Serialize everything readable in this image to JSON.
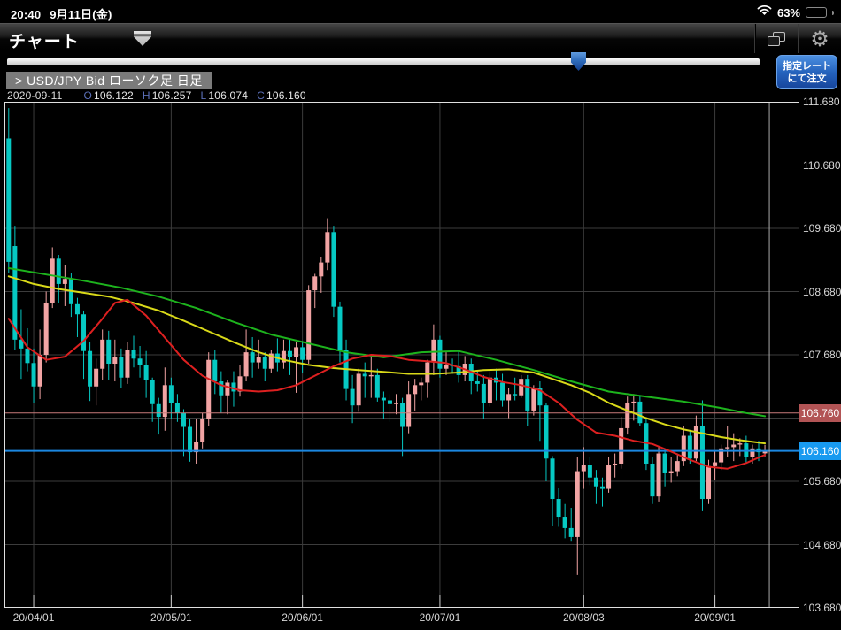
{
  "status_bar": {
    "time": "20:40",
    "date": "9月11日(金)",
    "battery_pct": "63%"
  },
  "nav_bar": {
    "title": "チャート"
  },
  "order_button": {
    "line1": "指定レート",
    "line2": "にて注文"
  },
  "symbol_header": {
    "text": "> USD/JPY  Bid  ローソク足 日足"
  },
  "ohlc": {
    "date": "2020-09-11",
    "o_label": "O",
    "o": "106.122",
    "h_label": "H",
    "h": "106.257",
    "l_label": "L",
    "l": "106.074",
    "c_label": "C",
    "c": "106.160"
  },
  "colors": {
    "up": "#f2a4a4",
    "down": "#06c9c3",
    "grid": "#3c3c3c",
    "border": "#e0e0e0",
    "ma_short": "#dd2020",
    "ma_mid": "#d9d919",
    "ma_long": "#1db31d",
    "alert_line": "#c97b7b",
    "alert_tag": "#b25455",
    "current_line": "#1b87e0",
    "current_tag": "#189af0",
    "cursor": "#aaaaaa",
    "axis_text": "#d8d8d8"
  },
  "chart_data": {
    "type": "candlestick",
    "title": "USD/JPY Bid ローソク足 日足",
    "ylim": [
      103.68,
      111.68
    ],
    "grid": true,
    "y_ticks": [
      {
        "label": "111.680",
        "value": 111.68
      },
      {
        "label": "110.680",
        "value": 110.68
      },
      {
        "label": "109.680",
        "value": 109.68
      },
      {
        "label": "108.680",
        "value": 108.68
      },
      {
        "label": "107.680",
        "value": 107.68
      },
      {
        "label": "106.680",
        "value": 106.68
      },
      {
        "label": "105.680",
        "value": 105.68
      },
      {
        "label": "104.680",
        "value": 104.68
      },
      {
        "label": "103.680",
        "value": 103.68
      }
    ],
    "x_ticks": [
      {
        "label": "20/04/01",
        "index": 4
      },
      {
        "label": "20/05/01",
        "index": 26
      },
      {
        "label": "20/06/01",
        "index": 47
      },
      {
        "label": "20/07/01",
        "index": 69
      },
      {
        "label": "20/08/03",
        "index": 92
      },
      {
        "label": "20/09/01",
        "index": 113
      }
    ],
    "h_lines": [
      {
        "price": 106.76,
        "label": "106.760",
        "role": "alert",
        "width": 1
      },
      {
        "price": 106.16,
        "label": "106.160",
        "role": "current",
        "width": 2
      }
    ],
    "cursor_index": 121,
    "candles": [
      [
        111.1,
        111.58,
        108.98,
        109.15
      ],
      [
        109.4,
        109.72,
        107.75,
        107.92
      ],
      [
        107.92,
        108.4,
        107.3,
        107.78
      ],
      [
        107.78,
        108.1,
        107.42,
        107.55
      ],
      [
        107.55,
        107.78,
        106.92,
        107.18
      ],
      [
        107.18,
        108.08,
        106.98,
        107.68
      ],
      [
        107.68,
        108.68,
        107.56,
        108.5
      ],
      [
        108.5,
        109.38,
        108.42,
        109.2
      ],
      [
        109.2,
        109.26,
        108.5,
        108.8
      ],
      [
        108.8,
        109.1,
        108.45,
        108.88
      ],
      [
        108.88,
        108.98,
        108.28,
        108.48
      ],
      [
        108.48,
        108.58,
        107.96,
        108.32
      ],
      [
        108.32,
        108.38,
        107.3,
        107.74
      ],
      [
        107.74,
        107.88,
        106.95,
        107.18
      ],
      [
        107.18,
        107.62,
        106.88,
        107.46
      ],
      [
        107.46,
        108.08,
        107.28,
        107.92
      ],
      [
        107.92,
        108.06,
        107.28,
        107.54
      ],
      [
        107.54,
        107.92,
        107.26,
        107.64
      ],
      [
        107.64,
        107.78,
        107.16,
        107.32
      ],
      [
        107.32,
        107.88,
        107.22,
        107.76
      ],
      [
        107.76,
        107.98,
        107.48,
        107.62
      ],
      [
        107.62,
        107.82,
        107.32,
        107.52
      ],
      [
        107.52,
        107.74,
        107.0,
        107.28
      ],
      [
        107.28,
        107.32,
        106.62,
        106.9
      ],
      [
        106.9,
        107.0,
        106.42,
        106.7
      ],
      [
        106.7,
        107.48,
        106.48,
        107.2
      ],
      [
        107.2,
        107.32,
        106.66,
        106.92
      ],
      [
        106.92,
        107.06,
        106.62,
        106.76
      ],
      [
        106.76,
        106.82,
        106.08,
        106.54
      ],
      [
        106.54,
        106.66,
        105.99,
        106.14
      ],
      [
        106.14,
        106.66,
        105.96,
        106.3
      ],
      [
        106.3,
        106.76,
        106.2,
        106.66
      ],
      [
        106.66,
        107.72,
        106.56,
        107.6
      ],
      [
        107.6,
        107.76,
        107.06,
        107.26
      ],
      [
        107.26,
        107.42,
        106.76,
        107.04
      ],
      [
        107.04,
        107.28,
        106.74,
        107.24
      ],
      [
        107.24,
        107.42,
        106.86,
        107.1
      ],
      [
        107.1,
        107.52,
        107.02,
        107.34
      ],
      [
        107.34,
        108.08,
        107.26,
        107.72
      ],
      [
        107.72,
        107.96,
        107.32,
        107.56
      ],
      [
        107.56,
        107.92,
        107.46,
        107.64
      ],
      [
        107.64,
        107.72,
        107.26,
        107.46
      ],
      [
        107.46,
        107.76,
        107.4,
        107.7
      ],
      [
        107.7,
        107.94,
        107.42,
        107.56
      ],
      [
        107.56,
        107.92,
        107.46,
        107.74
      ],
      [
        107.74,
        107.92,
        107.36,
        107.64
      ],
      [
        107.64,
        107.88,
        107.08,
        107.8
      ],
      [
        107.8,
        107.9,
        107.4,
        107.6
      ],
      [
        107.6,
        108.78,
        107.54,
        108.7
      ],
      [
        108.7,
        108.96,
        108.42,
        108.92
      ],
      [
        108.92,
        109.22,
        108.66,
        109.14
      ],
      [
        109.14,
        109.84,
        109.02,
        109.62
      ],
      [
        109.62,
        109.72,
        108.28,
        108.44
      ],
      [
        108.44,
        108.52,
        107.56,
        107.76
      ],
      [
        107.76,
        107.92,
        106.96,
        107.14
      ],
      [
        107.14,
        107.36,
        106.6,
        106.88
      ],
      [
        106.88,
        107.46,
        106.78,
        107.38
      ],
      [
        107.38,
        107.56,
        107.0,
        107.34
      ],
      [
        107.34,
        107.66,
        107.0,
        107.36
      ],
      [
        107.36,
        107.46,
        106.94,
        107.0
      ],
      [
        107.0,
        107.1,
        106.66,
        106.96
      ],
      [
        106.96,
        107.06,
        106.62,
        106.9
      ],
      [
        106.9,
        107.06,
        106.74,
        106.92
      ],
      [
        106.92,
        107.0,
        106.08,
        106.54
      ],
      [
        106.54,
        107.26,
        106.44,
        107.06
      ],
      [
        107.06,
        107.3,
        106.8,
        107.2
      ],
      [
        107.2,
        107.32,
        106.96,
        107.24
      ],
      [
        107.24,
        107.6,
        107.0,
        107.56
      ],
      [
        107.56,
        108.16,
        107.36,
        107.92
      ],
      [
        107.92,
        107.98,
        107.32,
        107.46
      ],
      [
        107.46,
        107.72,
        107.36,
        107.52
      ],
      [
        107.52,
        107.62,
        107.38,
        107.5
      ],
      [
        107.5,
        107.76,
        107.24,
        107.36
      ],
      [
        107.36,
        107.66,
        107.26,
        107.54
      ],
      [
        107.54,
        107.62,
        107.06,
        107.26
      ],
      [
        107.26,
        107.44,
        107.1,
        107.22
      ],
      [
        107.22,
        107.36,
        106.66,
        106.92
      ],
      [
        106.92,
        107.42,
        106.86,
        107.32
      ],
      [
        107.32,
        107.46,
        106.96,
        107.24
      ],
      [
        107.24,
        107.38,
        106.86,
        106.96
      ],
      [
        106.96,
        107.16,
        106.68,
        107.06
      ],
      [
        107.06,
        107.32,
        106.96,
        107.04
      ],
      [
        107.04,
        107.36,
        107.0,
        107.3
      ],
      [
        107.3,
        107.36,
        106.56,
        106.8
      ],
      [
        106.8,
        107.2,
        106.72,
        107.16
      ],
      [
        107.16,
        107.26,
        106.32,
        106.88
      ],
      [
        106.88,
        106.92,
        105.68,
        106.04
      ],
      [
        106.04,
        106.08,
        104.98,
        105.4
      ],
      [
        105.4,
        105.58,
        104.96,
        105.12
      ],
      [
        105.12,
        105.32,
        104.78,
        104.94
      ],
      [
        104.94,
        105.26,
        104.74,
        104.8
      ],
      [
        104.8,
        106.06,
        104.2,
        105.84
      ],
      [
        105.84,
        106.22,
        105.56,
        105.94
      ],
      [
        105.94,
        106.06,
        105.62,
        105.74
      ],
      [
        105.74,
        105.86,
        105.32,
        105.6
      ],
      [
        105.6,
        105.74,
        105.28,
        105.56
      ],
      [
        105.56,
        106.06,
        105.5,
        105.94
      ],
      [
        105.94,
        106.12,
        105.74,
        105.96
      ],
      [
        105.96,
        106.7,
        105.88,
        106.52
      ],
      [
        106.52,
        107.02,
        106.42,
        106.92
      ],
      [
        106.92,
        107.06,
        106.64,
        106.94
      ],
      [
        106.94,
        107.04,
        106.56,
        106.6
      ],
      [
        106.6,
        106.66,
        105.86,
        105.96
      ],
      [
        105.96,
        106.06,
        105.32,
        105.44
      ],
      [
        105.44,
        106.22,
        105.36,
        106.12
      ],
      [
        106.12,
        106.2,
        105.6,
        105.82
      ],
      [
        105.82,
        106.06,
        105.66,
        105.84
      ],
      [
        105.84,
        106.12,
        105.76,
        106.0
      ],
      [
        106.0,
        106.56,
        105.92,
        106.4
      ],
      [
        106.4,
        106.48,
        105.96,
        106.04
      ],
      [
        106.04,
        106.72,
        106.0,
        106.56
      ],
      [
        106.56,
        106.96,
        105.22,
        105.4
      ],
      [
        105.4,
        106.02,
        105.32,
        105.92
      ],
      [
        105.92,
        106.16,
        105.7,
        105.98
      ],
      [
        105.98,
        106.26,
        105.86,
        106.2
      ],
      [
        106.2,
        106.56,
        106.06,
        106.22
      ],
      [
        106.22,
        106.44,
        106.0,
        106.26
      ],
      [
        106.26,
        106.36,
        106.08,
        106.28
      ],
      [
        106.28,
        106.4,
        105.98,
        106.06
      ],
      [
        106.06,
        106.26,
        105.96,
        106.2
      ],
      [
        106.2,
        106.32,
        106.0,
        106.14
      ],
      [
        106.122,
        106.257,
        106.074,
        106.16
      ]
    ],
    "ma_lines": [
      {
        "name": "ma-long-green",
        "color": "#1db31d",
        "points": [
          [
            0,
            109.05
          ],
          [
            6,
            108.95
          ],
          [
            12,
            108.85
          ],
          [
            18,
            108.74
          ],
          [
            24,
            108.6
          ],
          [
            30,
            108.42
          ],
          [
            36,
            108.2
          ],
          [
            42,
            108.0
          ],
          [
            48,
            107.86
          ],
          [
            54,
            107.72
          ],
          [
            60,
            107.64
          ],
          [
            66,
            107.72
          ],
          [
            72,
            107.74
          ],
          [
            78,
            107.6
          ],
          [
            84,
            107.44
          ],
          [
            90,
            107.26
          ],
          [
            96,
            107.1
          ],
          [
            102,
            107.02
          ],
          [
            108,
            106.94
          ],
          [
            114,
            106.84
          ],
          [
            118,
            106.76
          ],
          [
            121,
            106.71
          ]
        ]
      },
      {
        "name": "ma-mid-yellow",
        "color": "#d9d919",
        "points": [
          [
            0,
            108.92
          ],
          [
            4,
            108.8
          ],
          [
            8,
            108.72
          ],
          [
            12,
            108.66
          ],
          [
            16,
            108.6
          ],
          [
            20,
            108.5
          ],
          [
            24,
            108.38
          ],
          [
            28,
            108.22
          ],
          [
            32,
            108.05
          ],
          [
            36,
            107.88
          ],
          [
            40,
            107.72
          ],
          [
            44,
            107.6
          ],
          [
            48,
            107.52
          ],
          [
            52,
            107.47
          ],
          [
            56,
            107.44
          ],
          [
            60,
            107.41
          ],
          [
            64,
            107.38
          ],
          [
            68,
            107.38
          ],
          [
            72,
            107.4
          ],
          [
            76,
            107.44
          ],
          [
            80,
            107.45
          ],
          [
            84,
            107.4
          ],
          [
            87,
            107.3
          ],
          [
            90,
            107.2
          ],
          [
            93,
            107.08
          ],
          [
            96,
            106.92
          ],
          [
            99,
            106.8
          ],
          [
            102,
            106.68
          ],
          [
            105,
            106.58
          ],
          [
            108,
            106.5
          ],
          [
            111,
            106.44
          ],
          [
            114,
            106.38
          ],
          [
            117,
            106.33
          ],
          [
            121,
            106.28
          ]
        ]
      },
      {
        "name": "ma-short-red",
        "color": "#dd2020",
        "points": [
          [
            0,
            108.25
          ],
          [
            3,
            107.8
          ],
          [
            6,
            107.6
          ],
          [
            9,
            107.65
          ],
          [
            12,
            107.9
          ],
          [
            15,
            108.25
          ],
          [
            17,
            108.5
          ],
          [
            19,
            108.55
          ],
          [
            22,
            108.3
          ],
          [
            25,
            107.95
          ],
          [
            28,
            107.6
          ],
          [
            31,
            107.35
          ],
          [
            34,
            107.2
          ],
          [
            37,
            107.12
          ],
          [
            40,
            107.1
          ],
          [
            43,
            107.12
          ],
          [
            46,
            107.2
          ],
          [
            49,
            107.35
          ],
          [
            52,
            107.5
          ],
          [
            55,
            107.62
          ],
          [
            58,
            107.68
          ],
          [
            61,
            107.66
          ],
          [
            64,
            107.6
          ],
          [
            67,
            107.58
          ],
          [
            70,
            107.55
          ],
          [
            73,
            107.45
          ],
          [
            76,
            107.33
          ],
          [
            79,
            107.25
          ],
          [
            82,
            107.2
          ],
          [
            85,
            107.12
          ],
          [
            88,
            106.92
          ],
          [
            91,
            106.65
          ],
          [
            94,
            106.45
          ],
          [
            97,
            106.4
          ],
          [
            100,
            106.32
          ],
          [
            103,
            106.27
          ],
          [
            106,
            106.15
          ],
          [
            109,
            106.02
          ],
          [
            112,
            105.91
          ],
          [
            115,
            105.88
          ],
          [
            118,
            105.97
          ],
          [
            121,
            106.1
          ]
        ]
      }
    ]
  }
}
